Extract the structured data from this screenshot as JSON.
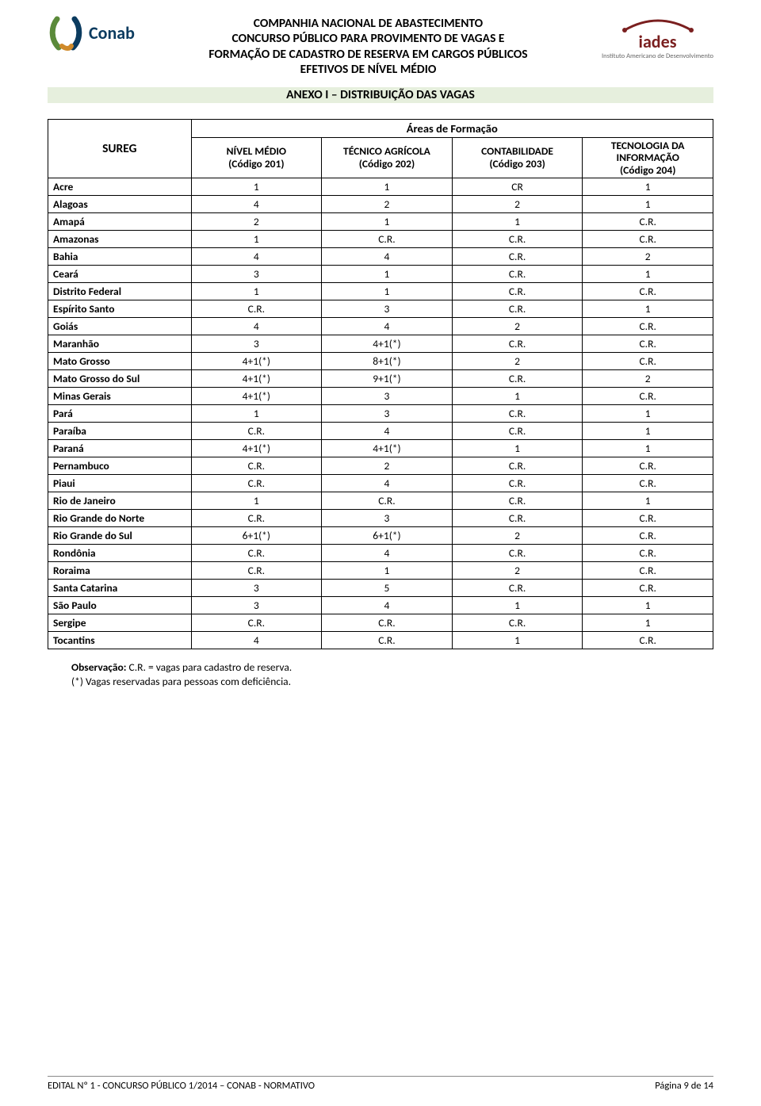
{
  "header": {
    "line1": "COMPANHIA NACIONAL DE ABASTECIMENTO",
    "line2": "CONCURSO PÚBLICO PARA PROVIMENTO DE VAGAS E",
    "line3": "FORMAÇÃO DE CADASTRO DE RESERVA EM CARGOS PÚBLICOS",
    "line4": "EFETIVOS DE NÍVEL MÉDIO",
    "band_title": "ANEXO I – DISTRIBUIÇÃO DAS VAGAS",
    "conab_label": "Conab",
    "iades_name": "iades",
    "iades_sub": "Instituto Americano de Desenvolvimento"
  },
  "colors": {
    "band_bg": "#e6efdd",
    "text": "#000000",
    "conab_blue": "#0b3b5f",
    "conab_green": "#5b8a3a",
    "conab_orange": "#d08a2a",
    "iades_red": "#7a1f1f",
    "border": "#000000"
  },
  "table": {
    "areas_header": "Áreas de Formação",
    "sureg_header": "SUREG",
    "columns": [
      {
        "title_l1": "NÍVEL MÉDIO",
        "title_l2": "(Código 201)"
      },
      {
        "title_l1": "TÉCNICO AGRÍCOLA",
        "title_l2": "(Código 202)"
      },
      {
        "title_l1": "CONTABILIDADE",
        "title_l2": "(Código 203)"
      },
      {
        "title_l1": "TECNOLOGIA DA",
        "title_l2": "INFORMAÇÃO",
        "title_l3": "(Código 204)"
      }
    ],
    "rows": [
      {
        "state": "Acre",
        "v": [
          "1",
          "1",
          "CR",
          "1"
        ]
      },
      {
        "state": "Alagoas",
        "v": [
          "4",
          "2",
          "2",
          "1"
        ]
      },
      {
        "state": "Amapá",
        "v": [
          "2",
          "1",
          "1",
          "C.R."
        ]
      },
      {
        "state": "Amazonas",
        "v": [
          "1",
          "C.R.",
          "C.R.",
          "C.R."
        ]
      },
      {
        "state": "Bahia",
        "v": [
          "4",
          "4",
          "C.R.",
          "2"
        ]
      },
      {
        "state": "Ceará",
        "v": [
          "3",
          "1",
          "C.R.",
          "1"
        ]
      },
      {
        "state": "Distrito Federal",
        "v": [
          "1",
          "1",
          "C.R.",
          "C.R."
        ]
      },
      {
        "state": "Espírito Santo",
        "v": [
          "C.R.",
          "3",
          "C.R.",
          "1"
        ]
      },
      {
        "state": "Goiás",
        "v": [
          "4",
          "4",
          "2",
          "C.R."
        ]
      },
      {
        "state": "Maranhão",
        "v": [
          "3",
          "4+1(*)",
          "C.R.",
          "C.R."
        ]
      },
      {
        "state": "Mato Grosso",
        "v": [
          "4+1(*)",
          "8+1(*)",
          "2",
          "C.R."
        ]
      },
      {
        "state": "Mato Grosso do Sul",
        "v": [
          "4+1(*)",
          "9+1(*)",
          "C.R.",
          "2"
        ]
      },
      {
        "state": "Minas Gerais",
        "v": [
          "4+1(*)",
          "3",
          "1",
          "C.R."
        ]
      },
      {
        "state": "Pará",
        "v": [
          "1",
          "3",
          "C.R.",
          "1"
        ]
      },
      {
        "state": "Paraíba",
        "v": [
          "C.R.",
          "4",
          "C.R.",
          "1"
        ]
      },
      {
        "state": "Paraná",
        "v": [
          "4+1(*)",
          "4+1(*)",
          "1",
          "1"
        ]
      },
      {
        "state": "Pernambuco",
        "v": [
          "C.R.",
          "2",
          "C.R.",
          "C.R."
        ]
      },
      {
        "state": "Piaui",
        "v": [
          "C.R.",
          "4",
          "C.R.",
          "C.R."
        ]
      },
      {
        "state": "Rio de Janeiro",
        "v": [
          "1",
          "C.R.",
          "C.R.",
          "1"
        ]
      },
      {
        "state": "Rio Grande do Norte",
        "v": [
          "C.R.",
          "3",
          "C.R.",
          "C.R."
        ]
      },
      {
        "state": "Rio Grande do Sul",
        "v": [
          "6+1(*)",
          "6+1(*)",
          "2",
          "C.R."
        ]
      },
      {
        "state": "Rondônia",
        "v": [
          "C.R.",
          "4",
          "C.R.",
          "C.R."
        ]
      },
      {
        "state": "Roraima",
        "v": [
          "C.R.",
          "1",
          "2",
          "C.R."
        ]
      },
      {
        "state": "Santa Catarina",
        "v": [
          "3",
          "5",
          "C.R.",
          "C.R."
        ]
      },
      {
        "state": "São Paulo",
        "v": [
          "3",
          "4",
          "1",
          "1"
        ]
      },
      {
        "state": "Sergipe",
        "v": [
          "C.R.",
          "C.R.",
          "C.R.",
          "1"
        ]
      },
      {
        "state": "Tocantins",
        "v": [
          "4",
          "C.R.",
          "1",
          "C.R."
        ]
      }
    ]
  },
  "notes": {
    "obs_label": "Observação:",
    "obs_text": " C.R. = vagas para cadastro de reserva.",
    "line2": "(*) Vagas reservadas para pessoas com deficiência."
  },
  "footer": {
    "left": "EDITAL Nº 1 - CONCURSO PÚBLICO 1/2014 – CONAB - NORMATIVO",
    "right": "Página 9 de 14"
  }
}
